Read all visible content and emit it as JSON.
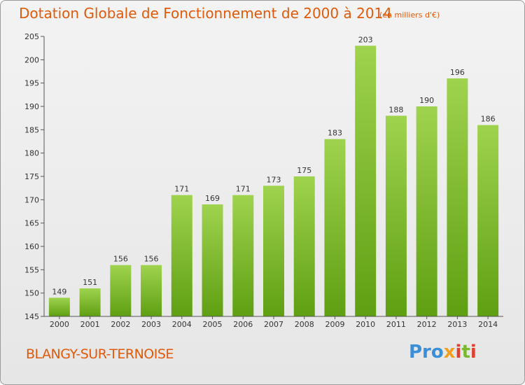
{
  "header": {
    "title": "Dotation Globale de Fonctionnement de 2000 à 2014",
    "unit": "(en milliers d'€)"
  },
  "footer": {
    "town": "BLANGY-SUR-TERNOISE",
    "logo": [
      "Pro",
      "x",
      "i",
      "t",
      "i"
    ]
  },
  "colors": {
    "title": "#e05a0a",
    "bar_top": "#9fd34e",
    "bar_bottom": "#5f9f12",
    "axis": "#555555"
  },
  "chart_data": {
    "type": "bar",
    "title": "Dotation Globale de Fonctionnement de 2000 à 2014",
    "categories": [
      "2000",
      "2001",
      "2002",
      "2003",
      "2004",
      "2005",
      "2006",
      "2007",
      "2008",
      "2009",
      "2010",
      "2011",
      "2012",
      "2013",
      "2014"
    ],
    "values": [
      149,
      151,
      156,
      156,
      171,
      169,
      171,
      173,
      175,
      183,
      203,
      188,
      190,
      196,
      186
    ],
    "ylim": [
      145,
      205
    ],
    "yticks": [
      145,
      150,
      155,
      160,
      165,
      170,
      175,
      180,
      185,
      190,
      195,
      200,
      205
    ],
    "grid": false,
    "data_labels": true
  }
}
